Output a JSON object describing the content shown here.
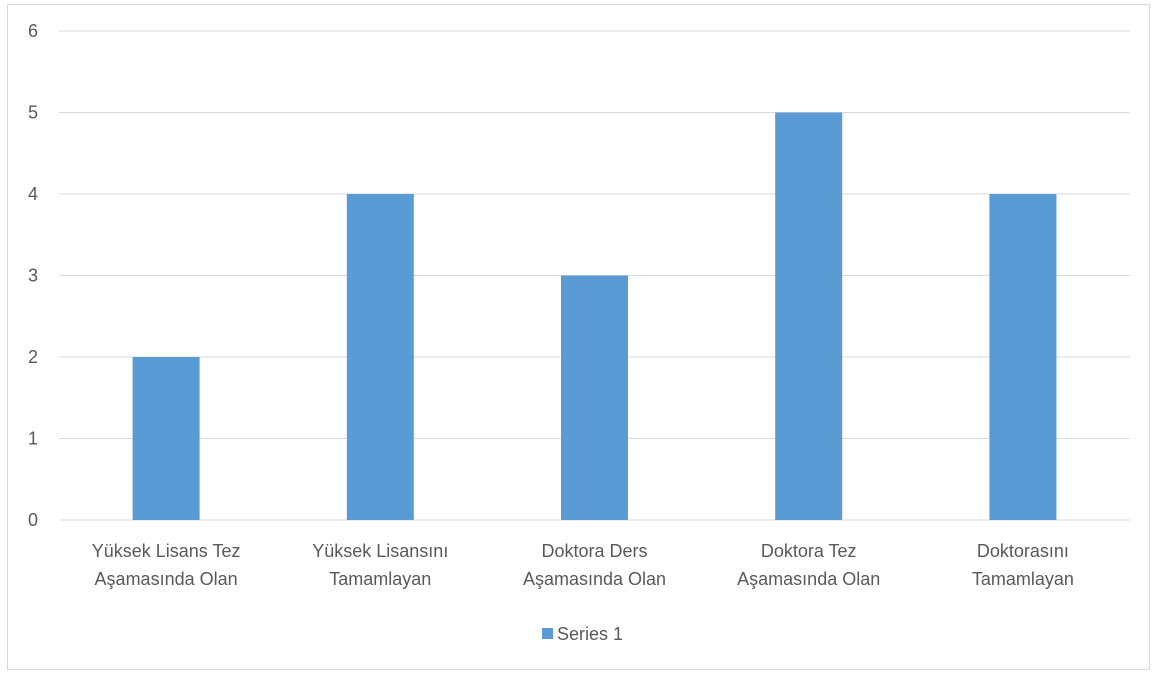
{
  "chart_data": {
    "type": "bar",
    "categories": [
      [
        "Yüksek Lisans Tez",
        "Aşamasında Olan"
      ],
      [
        "Yüksek Lisansını",
        "Tamamlayan"
      ],
      [
        "Doktora Ders",
        "Aşamasında Olan"
      ],
      [
        "Doktora Tez",
        "Aşamasında Olan"
      ],
      [
        "Doktorasını",
        "Tamamlayan"
      ]
    ],
    "series": [
      {
        "name": "Series 1",
        "values": [
          2,
          4,
          3,
          5,
          4
        ],
        "color": "#5b9bd5"
      }
    ],
    "yticks": [
      "0",
      "1",
      "2",
      "3",
      "4",
      "5",
      "6"
    ],
    "ylim": [
      0,
      6
    ],
    "grid": true,
    "gridColor": "#d9d9d9",
    "legend": {
      "position": "bottom",
      "label": "Series 1"
    }
  }
}
